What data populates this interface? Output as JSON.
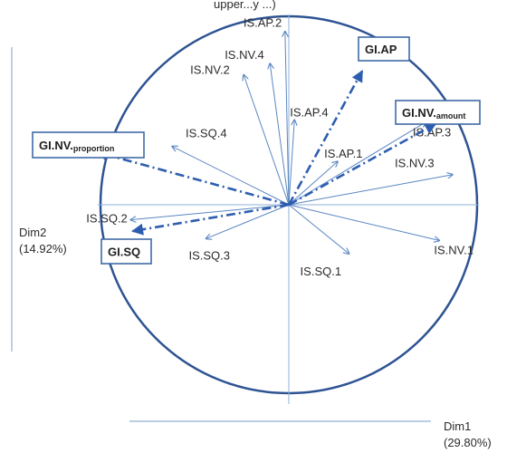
{
  "title_fragment": "upper...y ...)",
  "dim1": {
    "label": "Dim1",
    "pct": "(29.80%)"
  },
  "dim2": {
    "label": "Dim2",
    "pct": "(14.92%)"
  },
  "colors": {
    "arrow": "#5b87c2",
    "circle": "#2e5393",
    "box_border": "#3f6aa6",
    "text": "#2b2b2b"
  },
  "variables": [
    {
      "id": "IS.AP.2",
      "label": "IS.AP.2",
      "dim1": -0.02,
      "dim2": 0.92
    },
    {
      "id": "IS.NV.4",
      "label": "IS.NV.4",
      "dim1": -0.1,
      "dim2": 0.75
    },
    {
      "id": "IS.NV.2",
      "label": "IS.NV.2",
      "dim1": -0.24,
      "dim2": 0.69
    },
    {
      "id": "IS.AP.4",
      "label": "IS.AP.4",
      "dim1": 0.03,
      "dim2": 0.45
    },
    {
      "id": "IS.AP.1",
      "label": "IS.AP.1",
      "dim1": 0.26,
      "dim2": 0.23
    },
    {
      "id": "IS.AP.3",
      "label": "IS.AP.3",
      "dim1": 0.73,
      "dim2": 0.44
    },
    {
      "id": "IS.NV.3",
      "label": "IS.NV.3",
      "dim1": 0.87,
      "dim2": 0.16
    },
    {
      "id": "IS.NV.1",
      "label": "IS.NV.1",
      "dim1": 0.8,
      "dim2": -0.19
    },
    {
      "id": "IS.SQ.1",
      "label": "IS.SQ.1",
      "dim1": 0.32,
      "dim2": -0.26
    },
    {
      "id": "IS.SQ.3",
      "label": "IS.SQ.3",
      "dim1": -0.44,
      "dim2": -0.18
    },
    {
      "id": "IS.SQ.2",
      "label": "IS.SQ.2",
      "dim1": -0.84,
      "dim2": -0.08
    },
    {
      "id": "IS.SQ.4",
      "label": "IS.SQ.4",
      "dim1": -0.62,
      "dim2": 0.31
    }
  ],
  "supplementary": [
    {
      "id": "GI.AP",
      "label": "GI.AP",
      "sub": "",
      "dim1": 0.39,
      "dim2": 0.71
    },
    {
      "id": "GI.NV.amount",
      "label": "GI.NV.",
      "sub": "amount",
      "dim1": 0.78,
      "dim2": 0.43
    },
    {
      "id": "GI.NV.proportion",
      "label": "GI.NV.",
      "sub": "proportion",
      "dim1": -1.02,
      "dim2": 0.28
    },
    {
      "id": "GI.SQ",
      "label": "GI.SQ",
      "sub": "",
      "dim1": -0.83,
      "dim2": -0.14
    }
  ]
}
